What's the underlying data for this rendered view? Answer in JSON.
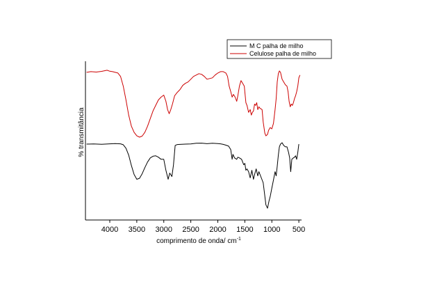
{
  "chart_data": {
    "type": "line",
    "title": "",
    "xlabel": "comprimento de onda/ cm",
    "xlabel_superscript": "-1",
    "ylabel": "% transmitância",
    "xlim": [
      4450,
      450
    ],
    "x_reversed": true,
    "y_ticks_shown": false,
    "grid": false,
    "legend_position": "top-right",
    "xticks": [
      4000,
      3500,
      3000,
      2500,
      2000,
      1500,
      1000,
      500
    ],
    "series": [
      {
        "name": "M C palha de milho",
        "color": "#000000",
        "points": [
          [
            4430,
            0.8
          ],
          [
            4300,
            0.801
          ],
          [
            4150,
            0.799
          ],
          [
            4000,
            0.802
          ],
          [
            3900,
            0.804
          ],
          [
            3800,
            0.802
          ],
          [
            3750,
            0.795
          ],
          [
            3700,
            0.77
          ],
          [
            3650,
            0.72
          ],
          [
            3600,
            0.645
          ],
          [
            3550,
            0.58
          ],
          [
            3500,
            0.545
          ],
          [
            3450,
            0.552
          ],
          [
            3400,
            0.585
          ],
          [
            3350,
            0.63
          ],
          [
            3300,
            0.67
          ],
          [
            3250,
            0.7
          ],
          [
            3200,
            0.712
          ],
          [
            3150,
            0.715
          ],
          [
            3100,
            0.705
          ],
          [
            3050,
            0.69
          ],
          [
            3000,
            0.69
          ],
          [
            2960,
            0.61
          ],
          [
            2920,
            0.545
          ],
          [
            2890,
            0.59
          ],
          [
            2850,
            0.565
          ],
          [
            2820,
            0.65
          ],
          [
            2790,
            0.79
          ],
          [
            2750,
            0.797
          ],
          [
            2700,
            0.798
          ],
          [
            2600,
            0.8
          ],
          [
            2500,
            0.801
          ],
          [
            2400,
            0.806
          ],
          [
            2300,
            0.807
          ],
          [
            2200,
            0.803
          ],
          [
            2100,
            0.806
          ],
          [
            2000,
            0.804
          ],
          [
            1950,
            0.802
          ],
          [
            1900,
            0.798
          ],
          [
            1850,
            0.792
          ],
          [
            1800,
            0.785
          ],
          [
            1760,
            0.76
          ],
          [
            1735,
            0.69
          ],
          [
            1720,
            0.725
          ],
          [
            1690,
            0.7
          ],
          [
            1650,
            0.69
          ],
          [
            1630,
            0.705
          ],
          [
            1600,
            0.7
          ],
          [
            1560,
            0.69
          ],
          [
            1520,
            0.65
          ],
          [
            1500,
            0.66
          ],
          [
            1480,
            0.61
          ],
          [
            1460,
            0.62
          ],
          [
            1430,
            0.6
          ],
          [
            1400,
            0.555
          ],
          [
            1370,
            0.61
          ],
          [
            1340,
            0.545
          ],
          [
            1320,
            0.58
          ],
          [
            1290,
            0.62
          ],
          [
            1260,
            0.57
          ],
          [
            1240,
            0.6
          ],
          [
            1200,
            0.56
          ],
          [
            1160,
            0.52
          ],
          [
            1110,
            0.36
          ],
          [
            1080,
            0.335
          ],
          [
            1050,
            0.39
          ],
          [
            1030,
            0.42
          ],
          [
            1000,
            0.48
          ],
          [
            970,
            0.54
          ],
          [
            940,
            0.6
          ],
          [
            920,
            0.57
          ],
          [
            900,
            0.64
          ],
          [
            880,
            0.72
          ],
          [
            860,
            0.78
          ],
          [
            840,
            0.8
          ],
          [
            810,
            0.81
          ],
          [
            780,
            0.79
          ],
          [
            750,
            0.78
          ],
          [
            720,
            0.78
          ],
          [
            690,
            0.74
          ],
          [
            670,
            0.7
          ],
          [
            650,
            0.6
          ],
          [
            630,
            0.69
          ],
          [
            600,
            0.7
          ],
          [
            580,
            0.705
          ],
          [
            560,
            0.715
          ],
          [
            540,
            0.69
          ],
          [
            520,
            0.74
          ],
          [
            500,
            0.8
          ]
        ]
      },
      {
        "name": "Celulose palha de milho",
        "color": "#cc0000",
        "points": [
          [
            4430,
            1.32
          ],
          [
            4350,
            1.325
          ],
          [
            4250,
            1.322
          ],
          [
            4150,
            1.327
          ],
          [
            4050,
            1.335
          ],
          [
            4000,
            1.328
          ],
          [
            3950,
            1.325
          ],
          [
            3900,
            1.32
          ],
          [
            3850,
            1.315
          ],
          [
            3800,
            1.29
          ],
          [
            3750,
            1.22
          ],
          [
            3700,
            1.12
          ],
          [
            3650,
            1.01
          ],
          [
            3600,
            0.93
          ],
          [
            3550,
            0.885
          ],
          [
            3500,
            0.86
          ],
          [
            3450,
            0.85
          ],
          [
            3400,
            0.858
          ],
          [
            3350,
            0.885
          ],
          [
            3300,
            0.93
          ],
          [
            3250,
            0.985
          ],
          [
            3200,
            1.04
          ],
          [
            3150,
            1.08
          ],
          [
            3100,
            1.12
          ],
          [
            3050,
            1.14
          ],
          [
            3000,
            1.155
          ],
          [
            2960,
            1.11
          ],
          [
            2930,
            1.05
          ],
          [
            2900,
            1.02
          ],
          [
            2870,
            1.05
          ],
          [
            2840,
            1.09
          ],
          [
            2800,
            1.15
          ],
          [
            2750,
            1.175
          ],
          [
            2700,
            1.195
          ],
          [
            2650,
            1.225
          ],
          [
            2600,
            1.24
          ],
          [
            2550,
            1.25
          ],
          [
            2500,
            1.27
          ],
          [
            2450,
            1.29
          ],
          [
            2400,
            1.3
          ],
          [
            2350,
            1.31
          ],
          [
            2300,
            1.305
          ],
          [
            2250,
            1.29
          ],
          [
            2200,
            1.27
          ],
          [
            2150,
            1.275
          ],
          [
            2100,
            1.28
          ],
          [
            2050,
            1.3
          ],
          [
            2000,
            1.315
          ],
          [
            1950,
            1.325
          ],
          [
            1900,
            1.325
          ],
          [
            1850,
            1.315
          ],
          [
            1820,
            1.29
          ],
          [
            1790,
            1.22
          ],
          [
            1760,
            1.18
          ],
          [
            1735,
            1.14
          ],
          [
            1710,
            1.16
          ],
          [
            1680,
            1.14
          ],
          [
            1650,
            1.11
          ],
          [
            1630,
            1.15
          ],
          [
            1600,
            1.22
          ],
          [
            1570,
            1.26
          ],
          [
            1540,
            1.24
          ],
          [
            1510,
            1.22
          ],
          [
            1480,
            1.1
          ],
          [
            1460,
            1.08
          ],
          [
            1430,
            1.03
          ],
          [
            1400,
            1.05
          ],
          [
            1380,
            1.01
          ],
          [
            1360,
            1.03
          ],
          [
            1340,
            1.04
          ],
          [
            1320,
            1.09
          ],
          [
            1300,
            1.08
          ],
          [
            1280,
            1.1
          ],
          [
            1260,
            1.05
          ],
          [
            1240,
            1.07
          ],
          [
            1220,
            1.06
          ],
          [
            1200,
            1.055
          ],
          [
            1180,
            1.05
          ],
          [
            1160,
            0.96
          ],
          [
            1130,
            0.88
          ],
          [
            1110,
            0.86
          ],
          [
            1080,
            0.87
          ],
          [
            1060,
            0.9
          ],
          [
            1030,
            0.92
          ],
          [
            1000,
            0.91
          ],
          [
            970,
            0.95
          ],
          [
            940,
            1.05
          ],
          [
            920,
            1.13
          ],
          [
            900,
            1.25
          ],
          [
            880,
            1.31
          ],
          [
            860,
            1.33
          ],
          [
            840,
            1.32
          ],
          [
            810,
            1.27
          ],
          [
            780,
            1.25
          ],
          [
            750,
            1.23
          ],
          [
            720,
            1.22
          ],
          [
            700,
            1.18
          ],
          [
            680,
            1.11
          ],
          [
            660,
            1.07
          ],
          [
            640,
            1.09
          ],
          [
            620,
            1.08
          ],
          [
            600,
            1.1
          ],
          [
            580,
            1.13
          ],
          [
            560,
            1.15
          ],
          [
            540,
            1.18
          ],
          [
            520,
            1.22
          ],
          [
            500,
            1.28
          ],
          [
            480,
            1.3
          ]
        ]
      }
    ]
  }
}
